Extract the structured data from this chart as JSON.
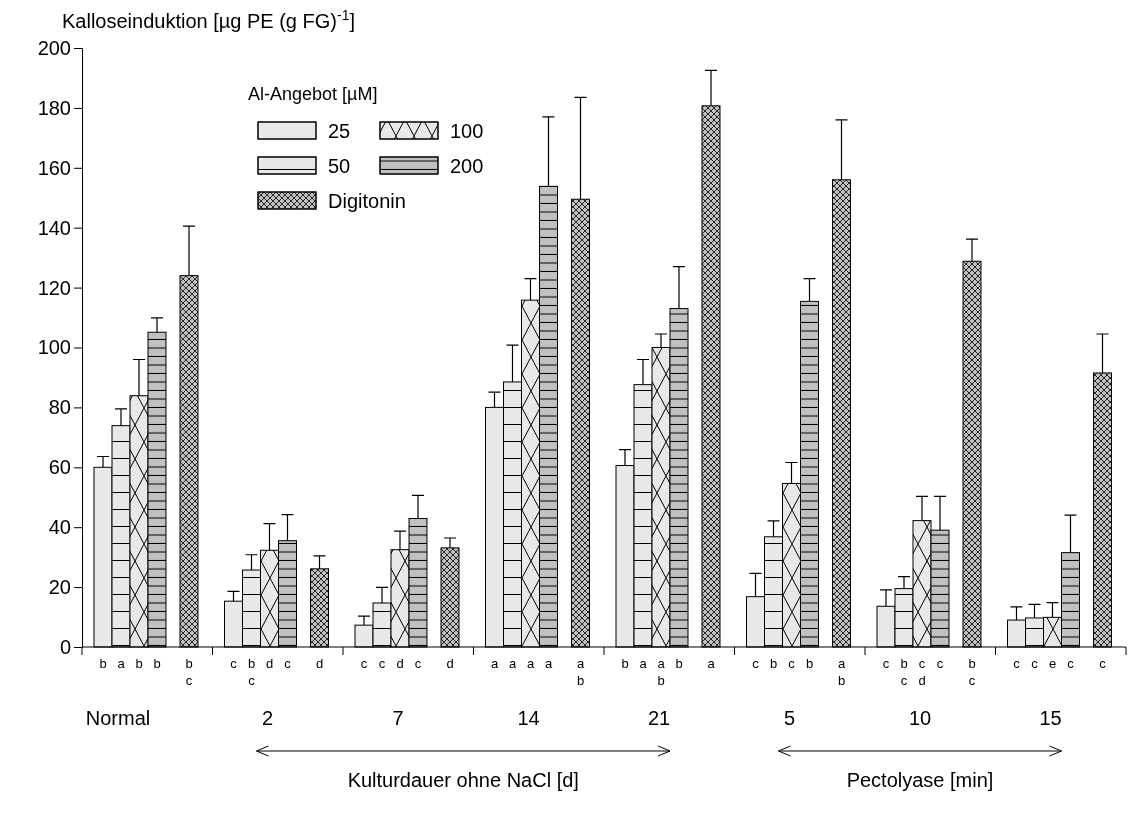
{
  "chart_data": {
    "type": "bar",
    "ylabel": "Kalloseinduktion [µg PE (g FG)$^{-1}$]",
    "legend_title": "Al-Angebot [µM]",
    "legend": "top left",
    "categories": [
      "Normal",
      "2",
      "7",
      "14",
      "21",
      "5",
      "10",
      "15"
    ],
    "ylim": [
      0,
      200
    ],
    "yticks": [
      0,
      20,
      40,
      60,
      80,
      100,
      120,
      140,
      160,
      180,
      200
    ],
    "series": [
      {
        "name": "25",
        "color": "#e8e8e8",
        "values": [
          60,
          15.3,
          7.3,
          80,
          60.6,
          16.8,
          13.6,
          9
        ],
        "errors": [
          [
            60,
            63.6
          ],
          [
            15.3,
            18.6
          ],
          [
            7.3,
            10.3
          ],
          [
            80,
            85.1
          ],
          [
            60.6,
            65.9
          ],
          [
            16.8,
            24.6
          ],
          [
            13.6,
            19.1
          ],
          [
            9,
            13.4
          ]
        ],
        "value_labels": [
          "b",
          "c",
          "c",
          "a",
          "b",
          "c",
          "c",
          "c"
        ]
      },
      {
        "name": "50",
        "color": "#e8e8e8",
        "values": [
          73.9,
          25.7,
          14.7,
          88.5,
          87.6,
          36.8,
          19.5,
          9.7
        ],
        "errors": [
          [
            73.9,
            79.5
          ],
          [
            25.7,
            30.8
          ],
          [
            14.7,
            19.9
          ],
          [
            88.5,
            100.8
          ],
          [
            87.6,
            96
          ],
          [
            36.8,
            42.1
          ],
          [
            19.5,
            23.5
          ],
          [
            9.7,
            14.2
          ]
        ],
        "value_labels": [
          "a",
          "b\nc",
          "c",
          "a",
          "a",
          "b",
          "b\nc",
          "c"
        ]
      },
      {
        "name": "100",
        "color": "#e8e8e8",
        "values": [
          83.9,
          32.3,
          32.5,
          115.8,
          100,
          54.6,
          42.2,
          9.9
        ],
        "errors": [
          [
            83.9,
            96
          ],
          [
            32.3,
            41.2
          ],
          [
            32.5,
            38.7
          ],
          [
            115.8,
            123
          ],
          [
            100,
            104.5
          ],
          [
            54.6,
            61.6
          ],
          [
            42.2,
            50.3
          ],
          [
            9.9,
            14.8
          ]
        ],
        "value_labels": [
          "b",
          "d",
          "d",
          "a",
          "a\nb",
          "c",
          "c\nd",
          "e"
        ]
      },
      {
        "name": "200",
        "color": "#c0c0c0",
        "values": [
          105.1,
          35.5,
          42.9,
          153.8,
          113,
          115.4,
          39,
          31.5
        ],
        "errors": [
          [
            105.1,
            109.9
          ],
          [
            35.5,
            44.2
          ],
          [
            42.9,
            50.6
          ],
          [
            153.8,
            177
          ],
          [
            113,
            127
          ],
          [
            115.4,
            123
          ],
          [
            39,
            50.3
          ],
          [
            31.5,
            44
          ]
        ],
        "value_labels": [
          "b",
          "c",
          "c",
          "a",
          "b",
          "b",
          "c",
          "c"
        ]
      },
      {
        "name": "Digitonin",
        "color": "#c0c0c0",
        "values": [
          124,
          26.1,
          33.1,
          149.5,
          180.7,
          156,
          128.8,
          91.5
        ],
        "errors": [
          [
            124,
            140.5
          ],
          [
            26.1,
            30.4
          ],
          [
            33.1,
            36.4
          ],
          [
            149.5,
            183.5
          ],
          [
            180.7,
            192.5
          ],
          [
            156,
            176
          ],
          [
            128.8,
            136.2
          ],
          [
            91.5,
            104.5
          ]
        ],
        "value_labels": [
          "b\nc",
          "d",
          "d",
          "a\nb",
          "a",
          "a\nb",
          "b\nc",
          "c"
        ]
      }
    ],
    "annotations": [
      "Kulturdauer ohne NaCl [d]",
      "Pectolyase [min]"
    ]
  }
}
